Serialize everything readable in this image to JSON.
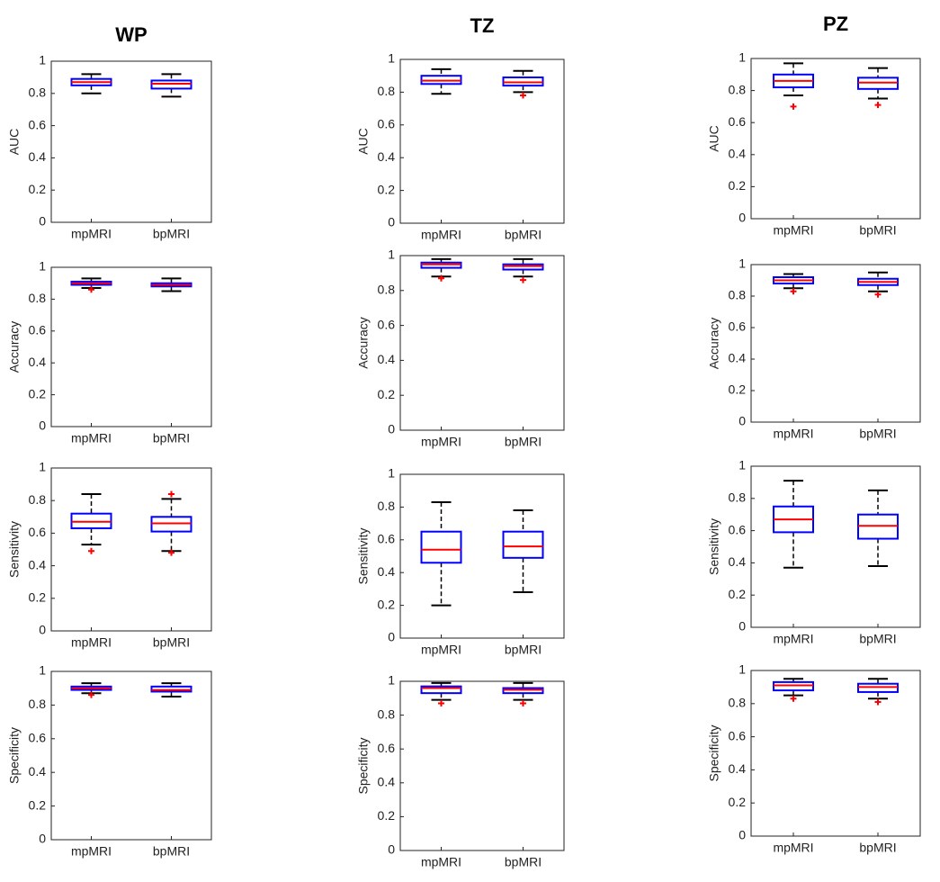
{
  "chart_data": [
    {
      "type": "box",
      "title": "WP",
      "ylabel": "AUC",
      "categories": [
        "mpMRI",
        "bpMRI"
      ],
      "ylim": [
        0,
        1
      ],
      "yticks": [
        0,
        0.2,
        0.4,
        0.6,
        0.8,
        1
      ],
      "box_color": "#0000ff",
      "median_color": "#ff0000",
      "outlier_color": "#ff0000",
      "boxes": [
        {
          "min": 0.8,
          "q1": 0.85,
          "median": 0.87,
          "q3": 0.89,
          "max": 0.92,
          "outliers": []
        },
        {
          "min": 0.78,
          "q1": 0.83,
          "median": 0.86,
          "q3": 0.88,
          "max": 0.92,
          "outliers": []
        }
      ]
    },
    {
      "type": "box",
      "title": "TZ",
      "ylabel": "AUC",
      "categories": [
        "mpMRI",
        "bpMRI"
      ],
      "ylim": [
        0,
        1
      ],
      "yticks": [
        0,
        0.2,
        0.4,
        0.6,
        0.8,
        1
      ],
      "box_color": "#0000ff",
      "median_color": "#ff0000",
      "outlier_color": "#ff0000",
      "boxes": [
        {
          "min": 0.79,
          "q1": 0.85,
          "median": 0.87,
          "q3": 0.9,
          "max": 0.94,
          "outliers": []
        },
        {
          "min": 0.8,
          "q1": 0.84,
          "median": 0.86,
          "q3": 0.89,
          "max": 0.93,
          "outliers": [
            0.78
          ]
        }
      ]
    },
    {
      "type": "box",
      "title": "PZ",
      "ylabel": "AUC",
      "categories": [
        "mpMRI",
        "bpMRI"
      ],
      "ylim": [
        0,
        1
      ],
      "yticks": [
        0,
        0.2,
        0.4,
        0.6,
        0.8,
        1
      ],
      "box_color": "#0000ff",
      "median_color": "#ff0000",
      "outlier_color": "#ff0000",
      "boxes": [
        {
          "min": 0.77,
          "q1": 0.82,
          "median": 0.86,
          "q3": 0.9,
          "max": 0.97,
          "outliers": [
            0.7
          ]
        },
        {
          "min": 0.75,
          "q1": 0.81,
          "median": 0.85,
          "q3": 0.88,
          "max": 0.94,
          "outliers": [
            0.71
          ]
        }
      ]
    },
    {
      "type": "box",
      "ylabel": "Accuracy",
      "categories": [
        "mpMRI",
        "bpMRI"
      ],
      "ylim": [
        0,
        1
      ],
      "yticks": [
        0,
        0.2,
        0.4,
        0.6,
        0.8,
        1
      ],
      "box_color": "#0000ff",
      "median_color": "#ff0000",
      "outlier_color": "#ff0000",
      "boxes": [
        {
          "min": 0.87,
          "q1": 0.89,
          "median": 0.9,
          "q3": 0.91,
          "max": 0.93,
          "outliers": [
            0.86
          ]
        },
        {
          "min": 0.85,
          "q1": 0.88,
          "median": 0.89,
          "q3": 0.9,
          "max": 0.93,
          "outliers": []
        }
      ]
    },
    {
      "type": "box",
      "ylabel": "Accuracy",
      "categories": [
        "mpMRI",
        "bpMRI"
      ],
      "ylim": [
        0,
        1
      ],
      "yticks": [
        0,
        0.2,
        0.4,
        0.6,
        0.8,
        1
      ],
      "box_color": "#0000ff",
      "median_color": "#ff0000",
      "outlier_color": "#ff0000",
      "boxes": [
        {
          "min": 0.88,
          "q1": 0.93,
          "median": 0.95,
          "q3": 0.96,
          "max": 0.98,
          "outliers": [
            0.87
          ]
        },
        {
          "min": 0.88,
          "q1": 0.92,
          "median": 0.94,
          "q3": 0.95,
          "max": 0.98,
          "outliers": [
            0.86
          ]
        }
      ]
    },
    {
      "type": "box",
      "ylabel": "Accuracy",
      "categories": [
        "mpMRI",
        "bpMRI"
      ],
      "ylim": [
        0,
        1
      ],
      "yticks": [
        0,
        0.2,
        0.4,
        0.6,
        0.8,
        1
      ],
      "box_color": "#0000ff",
      "median_color": "#ff0000",
      "outlier_color": "#ff0000",
      "boxes": [
        {
          "min": 0.85,
          "q1": 0.88,
          "median": 0.9,
          "q3": 0.92,
          "max": 0.94,
          "outliers": [
            0.83
          ]
        },
        {
          "min": 0.83,
          "q1": 0.87,
          "median": 0.89,
          "q3": 0.91,
          "max": 0.95,
          "outliers": [
            0.81
          ]
        }
      ]
    },
    {
      "type": "box",
      "ylabel": "Sensitivity",
      "categories": [
        "mpMRI",
        "bpMRI"
      ],
      "ylim": [
        0,
        1
      ],
      "yticks": [
        0,
        0.2,
        0.4,
        0.6,
        0.8,
        1
      ],
      "box_color": "#0000ff",
      "median_color": "#ff0000",
      "outlier_color": "#ff0000",
      "boxes": [
        {
          "min": 0.53,
          "q1": 0.63,
          "median": 0.67,
          "q3": 0.72,
          "max": 0.84,
          "outliers": [
            0.49
          ]
        },
        {
          "min": 0.49,
          "q1": 0.61,
          "median": 0.66,
          "q3": 0.7,
          "max": 0.81,
          "outliers": [
            0.84,
            0.48
          ]
        }
      ]
    },
    {
      "type": "box",
      "ylabel": "Sensitivity",
      "categories": [
        "mpMRI",
        "bpMRI"
      ],
      "ylim": [
        0,
        1
      ],
      "yticks": [
        0,
        0.2,
        0.4,
        0.6,
        0.8,
        1
      ],
      "box_color": "#0000ff",
      "median_color": "#ff0000",
      "outlier_color": "#ff0000",
      "boxes": [
        {
          "min": 0.2,
          "q1": 0.46,
          "median": 0.54,
          "q3": 0.65,
          "max": 0.83,
          "outliers": []
        },
        {
          "min": 0.28,
          "q1": 0.49,
          "median": 0.56,
          "q3": 0.65,
          "max": 0.78,
          "outliers": []
        }
      ]
    },
    {
      "type": "box",
      "ylabel": "Sensitivity",
      "categories": [
        "mpMRI",
        "bpMRI"
      ],
      "ylim": [
        0,
        1
      ],
      "yticks": [
        0,
        0.2,
        0.4,
        0.6,
        0.8,
        1
      ],
      "box_color": "#0000ff",
      "median_color": "#ff0000",
      "outlier_color": "#ff0000",
      "boxes": [
        {
          "min": 0.37,
          "q1": 0.59,
          "median": 0.67,
          "q3": 0.75,
          "max": 0.91,
          "outliers": []
        },
        {
          "min": 0.38,
          "q1": 0.55,
          "median": 0.63,
          "q3": 0.7,
          "max": 0.85,
          "outliers": []
        }
      ]
    },
    {
      "type": "box",
      "ylabel": "Specificity",
      "categories": [
        "mpMRI",
        "bpMRI"
      ],
      "ylim": [
        0,
        1
      ],
      "yticks": [
        0,
        0.2,
        0.4,
        0.6,
        0.8,
        1
      ],
      "box_color": "#0000ff",
      "median_color": "#ff0000",
      "outlier_color": "#ff0000",
      "boxes": [
        {
          "min": 0.87,
          "q1": 0.89,
          "median": 0.9,
          "q3": 0.91,
          "max": 0.93,
          "outliers": [
            0.86
          ]
        },
        {
          "min": 0.85,
          "q1": 0.88,
          "median": 0.89,
          "q3": 0.91,
          "max": 0.93,
          "outliers": []
        }
      ]
    },
    {
      "type": "box",
      "ylabel": "Specificity",
      "categories": [
        "mpMRI",
        "bpMRI"
      ],
      "ylim": [
        0,
        1
      ],
      "yticks": [
        0,
        0.2,
        0.4,
        0.6,
        0.8,
        1
      ],
      "box_color": "#0000ff",
      "median_color": "#ff0000",
      "outlier_color": "#ff0000",
      "boxes": [
        {
          "min": 0.89,
          "q1": 0.93,
          "median": 0.96,
          "q3": 0.97,
          "max": 0.99,
          "outliers": [
            0.87
          ]
        },
        {
          "min": 0.89,
          "q1": 0.93,
          "median": 0.95,
          "q3": 0.96,
          "max": 0.99,
          "outliers": [
            0.87
          ]
        }
      ]
    },
    {
      "type": "box",
      "ylabel": "Specificity",
      "categories": [
        "mpMRI",
        "bpMRI"
      ],
      "ylim": [
        0,
        1
      ],
      "yticks": [
        0,
        0.2,
        0.4,
        0.6,
        0.8,
        1
      ],
      "box_color": "#0000ff",
      "median_color": "#ff0000",
      "outlier_color": "#ff0000",
      "boxes": [
        {
          "min": 0.85,
          "q1": 0.88,
          "median": 0.91,
          "q3": 0.93,
          "max": 0.95,
          "outliers": [
            0.83
          ]
        },
        {
          "min": 0.83,
          "q1": 0.87,
          "median": 0.9,
          "q3": 0.92,
          "max": 0.95,
          "outliers": [
            0.81
          ]
        }
      ]
    }
  ]
}
